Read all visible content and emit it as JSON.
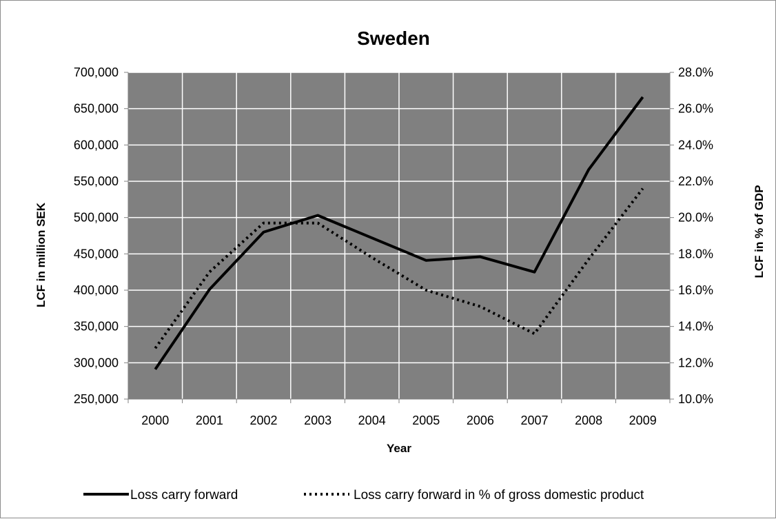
{
  "chart_data": {
    "type": "line",
    "title": "Sweden",
    "xlabel": "Year",
    "ylabel": "LCF in million SEK",
    "y2label": "LCF in % of GDP",
    "categories": [
      "2000",
      "2001",
      "2002",
      "2003",
      "2004",
      "2005",
      "2006",
      "2007",
      "2008",
      "2009"
    ],
    "ylim": [
      250000,
      700000
    ],
    "y2lim": [
      0.1,
      0.28
    ],
    "yticks": [
      "250,000",
      "300,000",
      "350,000",
      "400,000",
      "450,000",
      "500,000",
      "550,000",
      "600,000",
      "650,000",
      "700,000"
    ],
    "y2ticks": [
      "10.0%",
      "12.0%",
      "14.0%",
      "16.0%",
      "18.0%",
      "20.0%",
      "22.0%",
      "24.0%",
      "26.0%",
      "28.0%"
    ],
    "grid": true,
    "plot_background": "#808080",
    "legend_position": "bottom",
    "series": [
      {
        "name": "Loss carry forward",
        "axis": "left",
        "style": "solid",
        "color": "#000000",
        "values": [
          291000,
          401000,
          480000,
          503000,
          472000,
          441000,
          446000,
          425000,
          566000,
          666000
        ]
      },
      {
        "name": "Loss carry forward in % of gross domestic product",
        "axis": "right",
        "style": "dotted",
        "color": "#000000",
        "values": [
          0.128,
          0.17,
          0.197,
          0.197,
          0.178,
          0.16,
          0.151,
          0.136,
          0.177,
          0.216
        ]
      }
    ]
  }
}
